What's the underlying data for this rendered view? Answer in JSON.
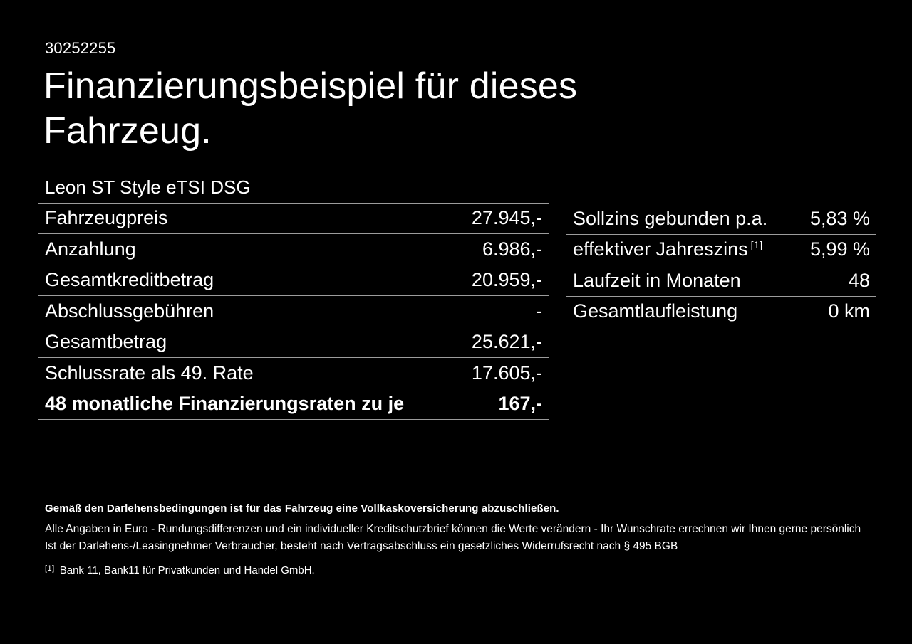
{
  "page": {
    "doc_id": "30252255",
    "heading": "Finanzierungsbeispiel für dieses Fahrzeug.",
    "vehicle_model": "Leon ST Style eTSI DSG"
  },
  "finance_table": {
    "rows": [
      {
        "label": "Fahrzeugpreis",
        "value": "27.945,-"
      },
      {
        "label": "Anzahlung",
        "value": "6.986,-"
      },
      {
        "label": "Gesamtkreditbetrag",
        "value": "20.959,-"
      },
      {
        "label": "Abschlussgebühren",
        "value": "-"
      },
      {
        "label": "Gesamtbetrag",
        "value": "25.621,-"
      },
      {
        "label": "Schlussrate als 49. Rate",
        "value": "17.605,-"
      },
      {
        "label": "48 monatliche Finanzierungsraten zu je",
        "value": "167,-"
      }
    ]
  },
  "conditions_table": {
    "rows": [
      {
        "label": "Sollzins gebunden p.a.",
        "value": "5,83 %"
      },
      {
        "label": "effektiver Jahreszins",
        "label_sup": "[1]",
        "value": "5,99 %"
      },
      {
        "label": "Laufzeit in Monaten",
        "value": "48"
      },
      {
        "label": "Gesamtlaufleistung",
        "value": "0 km"
      }
    ]
  },
  "footer": {
    "notice_bold": "Gemäß den Darlehensbedingungen ist für das Fahrzeug eine Vollkaskoversicherung abzuschließen.",
    "line1": "Alle Angaben in Euro - Rundungsdifferenzen und ein individueller Kreditschutzbrief können die Werte verändern - Ihr Wunschrate errechnen wir Ihnen gerne persönlich",
    "line2": "Ist der Darlehens-/Leasingnehmer Verbraucher, besteht nach Vertragsabschluss ein gesetzliches Widerrufsrecht nach § 495 BGB",
    "footnote_marker": "[1]",
    "footnote_text": "Bank 11, Bank11 für Privatkunden und Handel GmbH."
  },
  "colors": {
    "background": "#000000",
    "text": "#ffffff",
    "divider": "#9c9c9c"
  }
}
